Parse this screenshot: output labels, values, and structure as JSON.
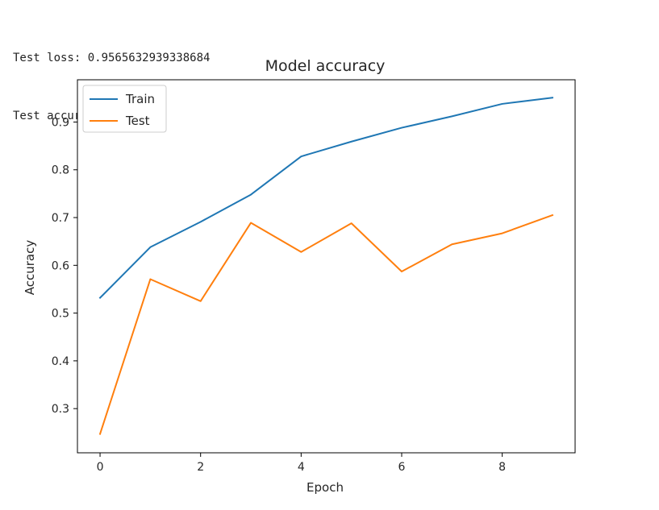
{
  "output": {
    "loss_line": "Test loss: 0.9565632939338684",
    "accuracy_line": "Test accuracy: 0.7174975275993347"
  },
  "chart_data": {
    "type": "line",
    "title": "Model accuracy",
    "xlabel": "Epoch",
    "ylabel": "Accuracy",
    "x": [
      0,
      1,
      2,
      3,
      4,
      5,
      6,
      7,
      8,
      9
    ],
    "xlim": [
      -0.45,
      9.45
    ],
    "ylim": [
      0.2075,
      0.9885
    ],
    "xticks": [
      0,
      2,
      4,
      6,
      8
    ],
    "yticks": [
      0.3,
      0.4,
      0.5,
      0.6,
      0.7,
      0.8,
      0.9
    ],
    "grid": false,
    "legend_position": "upper-left",
    "series": [
      {
        "name": "Train",
        "color": "#1f77b4",
        "values": [
          0.532,
          0.638,
          0.691,
          0.748,
          0.828,
          0.859,
          0.888,
          0.912,
          0.938,
          0.951
        ]
      },
      {
        "name": "Test",
        "color": "#ff7f0e",
        "values": [
          0.247,
          0.571,
          0.525,
          0.689,
          0.628,
          0.688,
          0.587,
          0.644,
          0.667,
          0.705
        ]
      }
    ]
  }
}
